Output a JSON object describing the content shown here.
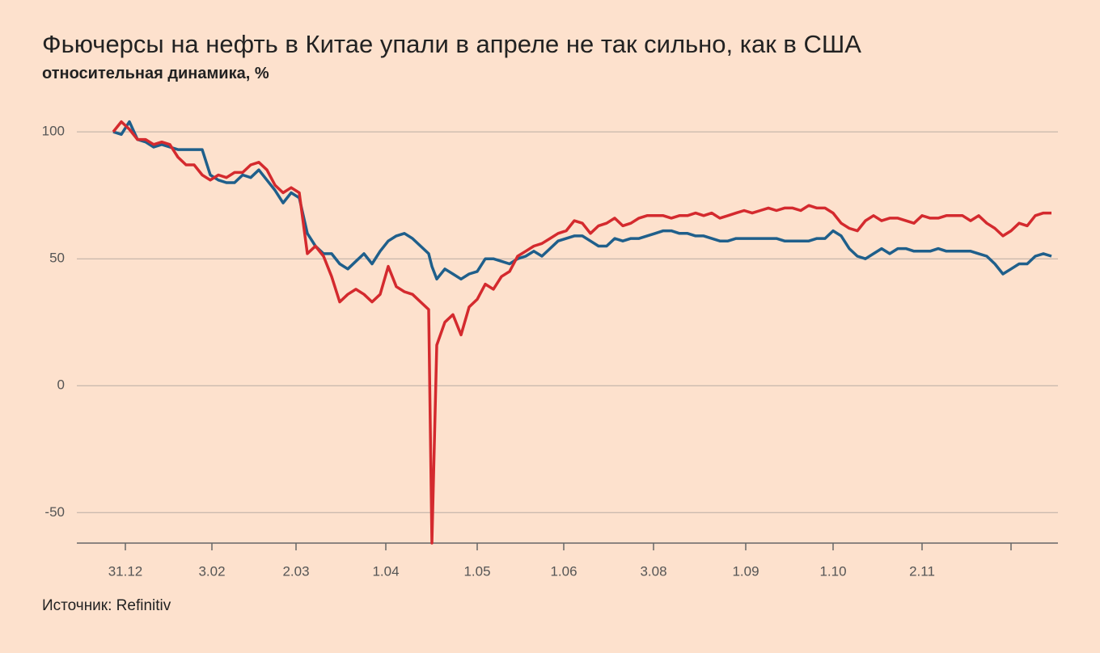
{
  "chart_data": {
    "type": "line",
    "title": "Фьючерсы на нефть в Китае упали в апреле не так сильно, как в США",
    "subtitle": "относительная динамика, %",
    "source": "Источник: Refinitiv",
    "x": [
      0,
      1,
      2,
      3,
      4,
      5,
      6,
      7,
      8,
      9,
      10,
      11,
      12,
      13,
      14,
      15,
      16,
      17,
      18,
      19,
      20,
      21,
      22,
      23,
      24,
      25,
      26,
      27,
      28,
      29,
      30,
      31,
      32,
      33,
      34,
      35,
      36,
      37,
      38,
      39,
      39.4,
      40,
      41,
      42,
      43,
      44,
      45,
      46,
      47,
      48,
      49,
      50,
      51,
      52,
      53,
      54,
      55,
      56,
      57,
      58,
      59,
      60,
      61,
      62,
      63,
      64,
      65,
      66,
      67,
      68,
      69,
      70,
      71,
      72,
      73,
      74,
      75,
      76,
      77,
      78,
      79,
      80,
      81,
      82,
      83,
      84,
      85,
      86,
      87,
      88,
      89,
      90,
      91,
      92,
      93,
      94,
      95,
      96,
      97,
      98,
      99,
      100,
      101,
      102,
      103,
      104,
      105,
      106,
      107,
      108,
      109,
      110,
      111,
      112,
      113,
      114,
      115,
      116
    ],
    "series": [
      {
        "color": "#1f5f8b",
        "values": [
          100,
          99,
          104,
          97,
          96,
          94,
          95,
          94,
          93,
          93,
          93,
          93,
          83,
          81,
          80,
          80,
          83,
          82,
          85,
          81,
          77,
          72,
          76,
          74,
          60,
          55,
          52,
          52,
          48,
          46,
          49,
          52,
          48,
          53,
          57,
          59,
          60,
          58,
          55,
          52,
          47,
          42,
          46,
          44,
          42,
          44,
          45,
          50,
          50,
          49,
          48,
          50,
          51,
          53,
          51,
          54,
          57,
          58,
          59,
          59,
          57,
          55,
          55,
          58,
          57,
          58,
          58,
          59,
          60,
          61,
          61,
          60,
          60,
          59,
          59,
          58,
          57,
          57,
          58,
          58,
          58,
          58,
          58,
          58,
          57,
          57,
          57,
          57,
          58,
          58,
          61,
          59,
          54,
          51,
          50,
          52,
          54,
          52,
          54,
          54,
          53,
          53,
          53,
          54,
          53,
          53,
          53,
          53,
          52,
          51,
          48,
          44,
          46,
          48,
          48,
          51,
          52,
          51
        ]
      },
      {
        "color": "#d42a2e",
        "values": [
          100,
          104,
          101,
          97,
          97,
          95,
          96,
          95,
          90,
          87,
          87,
          83,
          81,
          83,
          82,
          84,
          84,
          87,
          88,
          85,
          79,
          76,
          78,
          76,
          52,
          55,
          51,
          43,
          33,
          36,
          38,
          36,
          33,
          36,
          47,
          39,
          37,
          36,
          33,
          30,
          -62,
          16,
          25,
          28,
          20,
          31,
          34,
          40,
          38,
          43,
          45,
          51,
          53,
          55,
          56,
          58,
          60,
          61,
          65,
          64,
          60,
          63,
          64,
          66,
          63,
          64,
          66,
          67,
          67,
          67,
          66,
          67,
          67,
          68,
          67,
          68,
          66,
          67,
          68,
          69,
          68,
          69,
          70,
          69,
          70,
          70,
          69,
          71,
          70,
          70,
          68,
          64,
          62,
          61,
          65,
          67,
          65,
          66,
          66,
          65,
          64,
          67,
          66,
          66,
          67,
          67,
          67,
          65,
          67,
          64,
          62,
          59,
          61,
          64,
          63,
          67,
          68,
          68
        ]
      }
    ],
    "xlim": [
      -4.5,
      116.8
    ],
    "xticks": [
      {
        "value": 1.5,
        "label": "31.12"
      },
      {
        "value": 12.2,
        "label": "3.02"
      },
      {
        "value": 22.6,
        "label": "2.03"
      },
      {
        "value": 33.7,
        "label": "1.04"
      },
      {
        "value": 45,
        "label": "1.05"
      },
      {
        "value": 55.7,
        "label": "1.06"
      },
      {
        "value": 66.8,
        "label": "3.08"
      },
      {
        "value": 78.2,
        "label": "1.09"
      },
      {
        "value": 89,
        "label": "1.10"
      },
      {
        "value": 100,
        "label": "2.11"
      },
      {
        "value": 111,
        "label": null
      }
    ],
    "ylim": [
      -62,
      108
    ],
    "yticks": [
      -50,
      0,
      50,
      100
    ],
    "grid": true
  }
}
